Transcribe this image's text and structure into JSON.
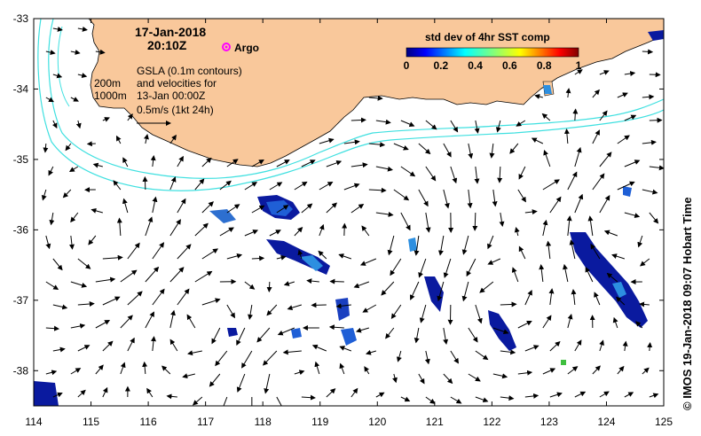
{
  "header": {
    "date": "17-Jan-2018",
    "time": "20:10Z",
    "argo_label": "Argo"
  },
  "contours": {
    "label_200m": "200m",
    "label_1000m": "1000m"
  },
  "legend_notes": {
    "line1": "GSLA (0.1m contours)",
    "line2": "and velocities for",
    "line3": "13-Jan 00:00Z",
    "scale_label": "0.5m/s (1kt 24h)"
  },
  "colorbar": {
    "title": "std dev of 4hr SST comp",
    "ticks": [
      "0",
      "0.2",
      "0.4",
      "0.6",
      "0.8",
      "1"
    ]
  },
  "axes": {
    "x_ticks": [
      "114",
      "115",
      "116",
      "117",
      "118",
      "119",
      "120",
      "121",
      "122",
      "123",
      "124",
      "125"
    ],
    "y_ticks": [
      "-33",
      "-34",
      "-35",
      "-36",
      "-37",
      "-38"
    ],
    "x_range": [
      114,
      125
    ],
    "y_range": [
      -38.5,
      -33
    ]
  },
  "credit": "© IMOS 19-Jan-2018 09:07 Hobart Time",
  "colors": {
    "land": "#f9c89b",
    "bathymetry": "#3fe0e0",
    "argo": "#ff00ff",
    "sst_low": "#00007f",
    "sst_high": "#7f0000"
  }
}
